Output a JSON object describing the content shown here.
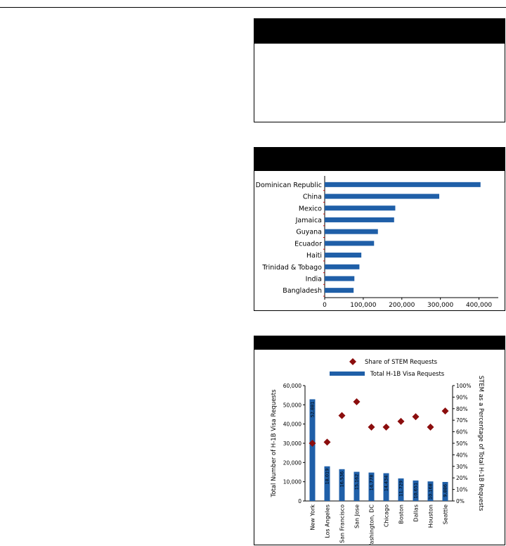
{
  "panels": [
    {
      "header": ""
    },
    {
      "header": ""
    },
    {
      "header": ""
    }
  ],
  "chart_data": [
    {
      "type": "bar",
      "orientation": "horizontal",
      "categories": [
        "Dominican Republic",
        "China",
        "Mexico",
        "Jamaica",
        "Guyana",
        "Ecuador",
        "Haiti",
        "Trinidad & Tobago",
        "India",
        "Bangladesh"
      ],
      "values": [
        404000,
        297000,
        183000,
        180000,
        138000,
        128000,
        95000,
        90000,
        77000,
        75000
      ],
      "xlim": [
        0,
        450000
      ],
      "xticks": [
        0,
        100000,
        200000,
        300000,
        400000
      ],
      "xtick_labels": [
        "0",
        "100,000",
        "200,000",
        "300,000",
        "400,000"
      ],
      "bar_color": "#1f5fa8",
      "title": "",
      "xlabel": "",
      "ylabel": ""
    },
    {
      "type": "bar+scatter",
      "categories": [
        "New York",
        "Los Angeles",
        "San Francisco",
        "San Jose",
        "Washington, DC",
        "Chicago",
        "Boston",
        "Dallas",
        "Houston",
        "Seattle"
      ],
      "series": [
        {
          "name": "Total H-1B Visa Requests",
          "type": "bar",
          "axis": "left",
          "values": [
            52881,
            18019,
            16536,
            15162,
            14778,
            14434,
            11729,
            10651,
            10168,
            9886
          ],
          "value_labels": [
            "52,881",
            "18,019",
            "16,536",
            "15,162",
            "14,778",
            "14,434",
            "11,729",
            "10,651",
            "10,168",
            "9,886"
          ],
          "color": "#1f5fa8"
        },
        {
          "name": "Share of STEM Requests",
          "type": "scatter",
          "axis": "right",
          "values": [
            50,
            51,
            74,
            86,
            64,
            64,
            69,
            73,
            64,
            78
          ],
          "color": "#8b0d0d"
        }
      ],
      "ylabel_left": "Total Number of H-1B Visa Requests",
      "ylabel_right": "STEM as a Percentage of Total H-1B Requests",
      "ylim_left": [
        0,
        60000
      ],
      "yticks_left": [
        "0",
        "10,000",
        "20,000",
        "30,000",
        "40,000",
        "50,000",
        "60,000"
      ],
      "ylim_right": [
        0,
        100
      ],
      "yticks_right": [
        "0%",
        "10%",
        "20%",
        "30%",
        "40%",
        "50%",
        "60%",
        "70%",
        "80%",
        "90%",
        "100%"
      ],
      "legend": {
        "placement": "top",
        "entries": [
          "Share of STEM Requests",
          "Total H-1B Visa Requests"
        ]
      }
    }
  ]
}
